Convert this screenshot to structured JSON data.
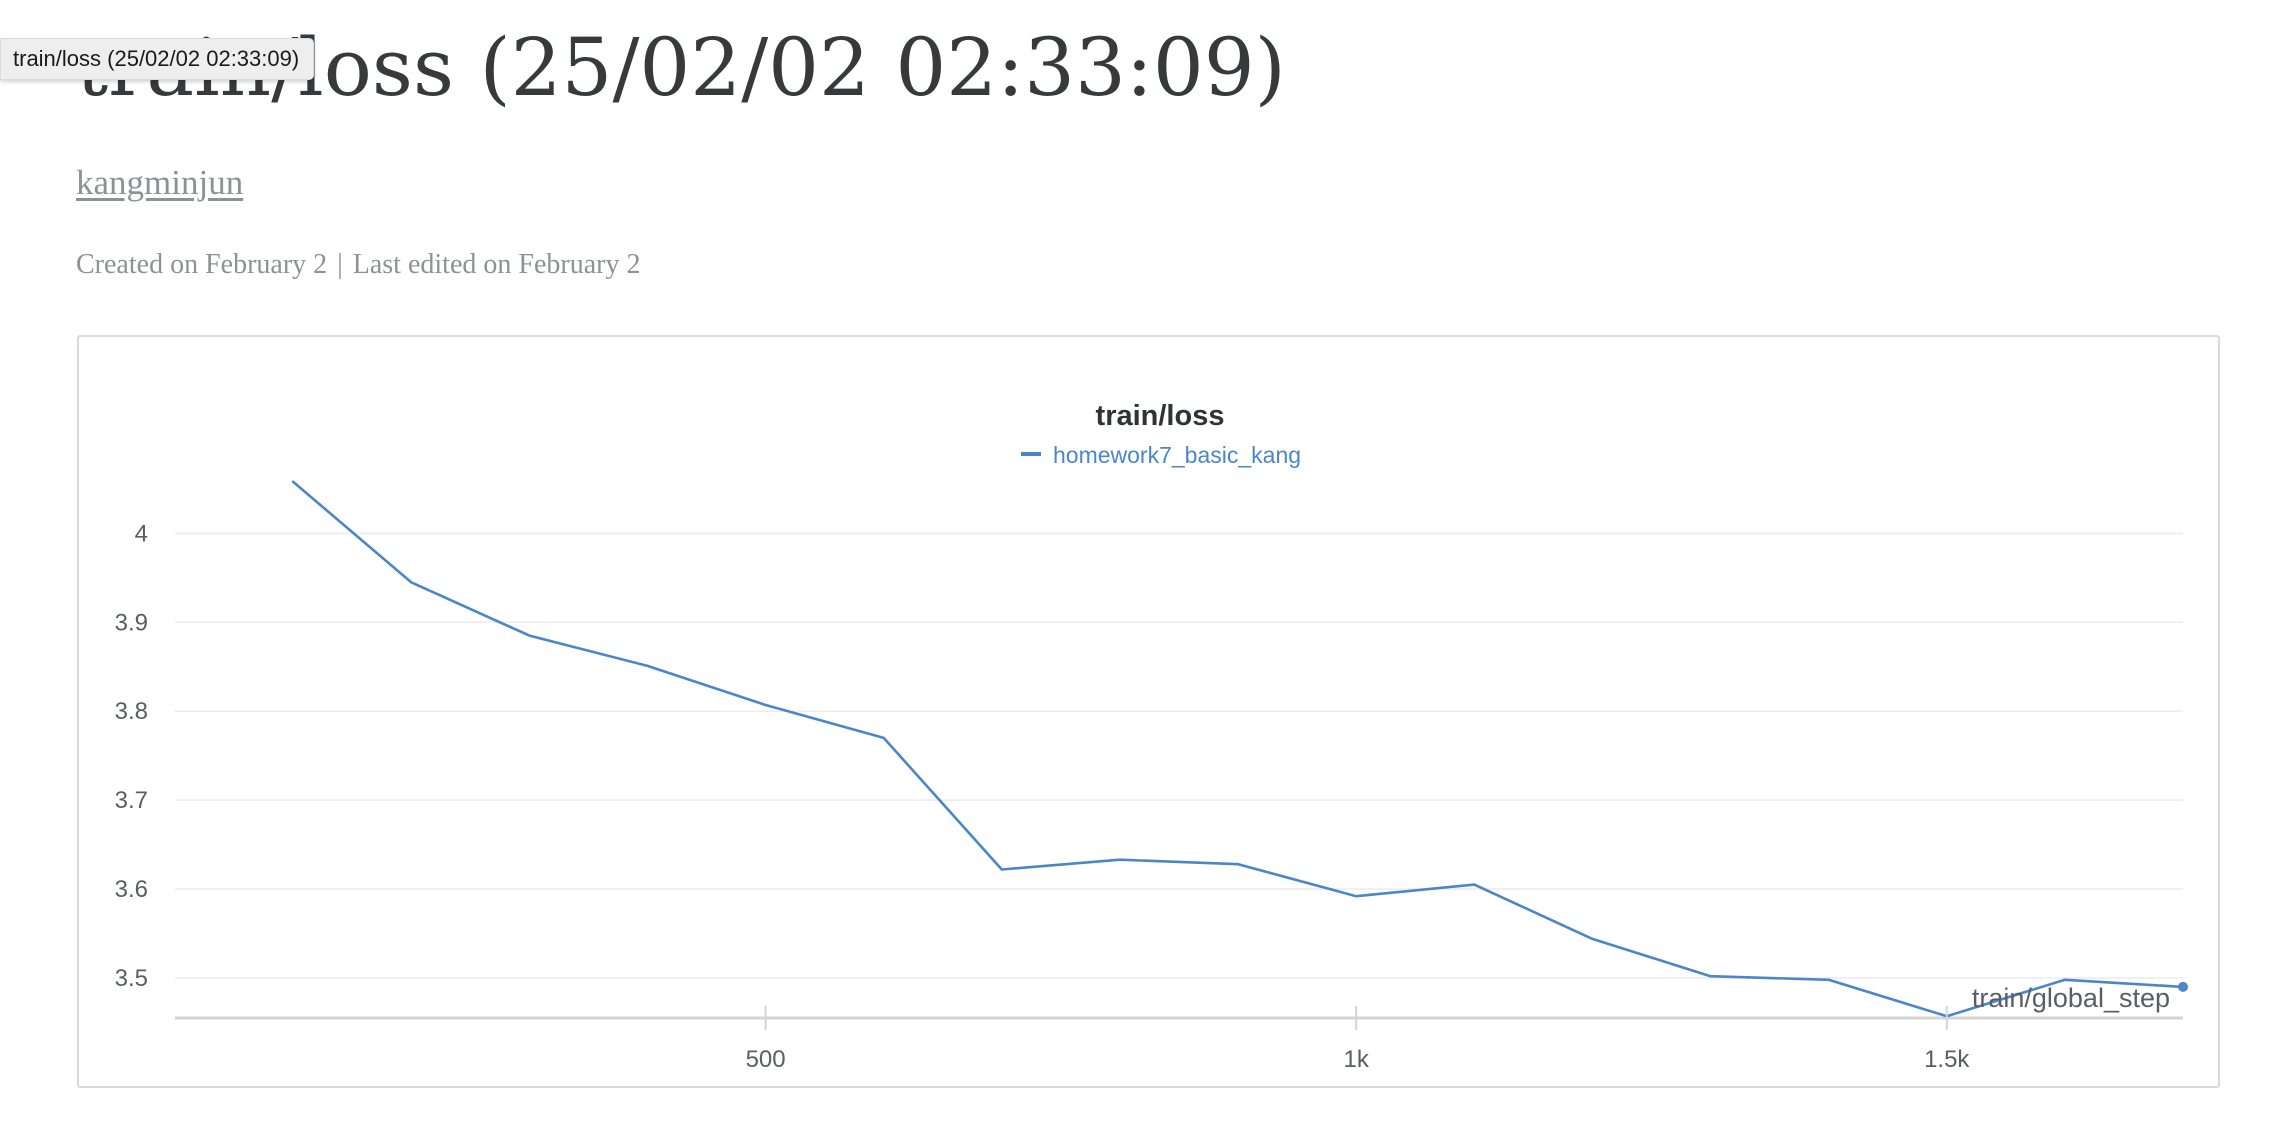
{
  "page": {
    "title": "train/loss (25/02/02 02:33:09)",
    "tooltip": "train/loss (25/02/02 02:33:09)",
    "author": "kangminjun",
    "created": "Created on February 2",
    "separator": "|",
    "edited": "Last edited on February 2"
  },
  "colors": {
    "series": "#4a86c8",
    "grid": "#ececee",
    "axis": "#d4d4d6"
  },
  "chart_data": {
    "type": "line",
    "title": "train/loss",
    "xlabel": "train/global_step",
    "ylabel": "",
    "xlim": [
      0,
      1700
    ],
    "ylim": [
      3.455,
      4.06
    ],
    "xticks": [
      500,
      1000,
      1500
    ],
    "xtick_labels": [
      "500",
      "1k",
      "1.5k"
    ],
    "yticks": [
      3.5,
      3.6,
      3.7,
      3.8,
      3.9,
      4
    ],
    "ytick_labels": [
      "3.5",
      "3.6",
      "3.7",
      "3.8",
      "3.9",
      "4"
    ],
    "grid": true,
    "legend": "top-center",
    "series": [
      {
        "name": "homework7_basic_kang",
        "x": [
          100,
          200,
          300,
          400,
          500,
          600,
          700,
          800,
          900,
          1000,
          1100,
          1200,
          1300,
          1400,
          1500,
          1600,
          1700
        ],
        "y": [
          4.058,
          3.945,
          3.885,
          3.851,
          3.807,
          3.77,
          3.622,
          3.633,
          3.628,
          3.592,
          3.605,
          3.544,
          3.502,
          3.498,
          3.457,
          3.498,
          3.49
        ]
      }
    ]
  }
}
